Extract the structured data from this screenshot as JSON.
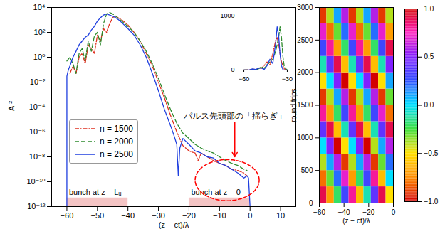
{
  "chart_data": [
    {
      "type": "line",
      "xlabel": "(z − ct)/λ",
      "ylabel": "|A|²",
      "xlim": [
        -65,
        15
      ],
      "xticks": [
        -60,
        -50,
        -40,
        -30,
        -20,
        -10,
        0,
        10
      ],
      "ylim": [
        1e-12,
        10000
      ],
      "yticks": [
        {
          "value": 1e-12,
          "label": "10⁻¹²"
        },
        {
          "value": 1e-10,
          "label": "10⁻¹⁰"
        },
        {
          "value": 1e-08,
          "label": "10⁻⁸"
        },
        {
          "value": 1e-06,
          "label": "10⁻⁶"
        },
        {
          "value": 0.0001,
          "label": "10⁻⁴"
        },
        {
          "value": 0.01,
          "label": "10⁻²"
        },
        {
          "value": 1,
          "label": "10⁰"
        },
        {
          "value": 100,
          "label": "10²"
        },
        {
          "value": 10000,
          "label": "10⁴"
        }
      ],
      "log": "y",
      "legend": "left",
      "series": [
        {
          "name": "n = 1500",
          "color": "#e03020",
          "line_style": "dashdot",
          "x": [
            -59,
            -58,
            -57,
            -56,
            -55,
            -54,
            -53,
            -52,
            -51,
            -50,
            -49,
            -48,
            -47,
            -46,
            -45,
            -44,
            -42,
            -40,
            -38,
            -36,
            -34,
            -32,
            -30,
            -28,
            -26,
            -24,
            -22,
            -20,
            -18,
            -17,
            -16,
            -14,
            -12,
            -10,
            -8,
            -6,
            -4,
            -2,
            -1
          ],
          "values": [
            0.05,
            0.2,
            0.05,
            1,
            2,
            0.3,
            10,
            5,
            2,
            60,
            20,
            200,
            100,
            500,
            1500,
            2000,
            1000,
            400,
            100,
            20,
            2,
            0.2,
            0.01,
            0.0005,
            2e-05,
            1e-06,
            8e-08,
            3e-08,
            2e-08,
            5e-09,
            2e-08,
            1e-08,
            5e-09,
            3e-09,
            2e-09,
            1e-09,
            8e-10,
            5e-10,
            3e-10
          ]
        },
        {
          "name": "n = 2000",
          "color": "#2e8b2e",
          "line_style": "dashed",
          "x": [
            -60,
            -59,
            -58,
            -57,
            -56,
            -55,
            -54,
            -53,
            -52,
            -51,
            -50,
            -49,
            -48,
            -47,
            -46,
            -45,
            -44,
            -42,
            -40,
            -38,
            -36,
            -34,
            -32,
            -30,
            -28,
            -26,
            -24,
            -22,
            -20,
            -18,
            -16,
            -14,
            -12,
            -10,
            -8,
            -6,
            -4,
            -2,
            -1
          ],
          "values": [
            0.5,
            1,
            0.3,
            0.05,
            2,
            5,
            0.5,
            20,
            3,
            50,
            100,
            10,
            500,
            3000,
            4000,
            3000,
            2000,
            800,
            300,
            100,
            20,
            3,
            0.3,
            0.02,
            0.001,
            6e-05,
            5e-06,
            8e-07,
            3e-07,
            1e-07,
            5e-08,
            3e-08,
            2e-08,
            1e-08,
            5e-09,
            3e-09,
            2e-09,
            1e-09,
            8e-10
          ]
        },
        {
          "name": "n = 2500",
          "color": "#1f3fdf",
          "line_style": "solid",
          "x": [
            -60,
            -60,
            -59.5,
            -59,
            -58,
            -57,
            -56,
            -55,
            -54,
            -53,
            -52,
            -51,
            -50,
            -49,
            -48,
            -47,
            -46,
            -45,
            -44,
            -43,
            -42,
            -40,
            -38,
            -36,
            -34,
            -32,
            -30,
            -28,
            -26,
            -25,
            -24,
            -23.5,
            -23,
            -22,
            -20,
            -18,
            -16,
            -14,
            -12,
            -10,
            -8,
            -6,
            -4,
            -2,
            -1,
            -0.5,
            0
          ],
          "values": [
            1e-12,
            0.03,
            0.1,
            0.2,
            1,
            3,
            10,
            20,
            40,
            60,
            150,
            300,
            800,
            1500,
            2500,
            3000,
            2500,
            2000,
            1500,
            1000,
            600,
            200,
            60,
            10,
            1,
            0.05,
            0.002,
            6e-05,
            3e-06,
            6e-07,
            1e-07,
            3e-10,
            5e-08,
            3e-07,
            1e-07,
            3e-08,
            2e-08,
            1e-08,
            8e-09,
            3e-09,
            2e-09,
            1e-09,
            5e-10,
            2e-10,
            3e-10,
            2e-10,
            1e-12
          ]
        }
      ],
      "bunches": [
        {
          "label": "bunch at z = Lᵤ",
          "x0": -60,
          "x1": -40,
          "ytop": 5e-12,
          "color": "#f4c4c4"
        },
        {
          "label": "bunch at z = 0",
          "x0": -20,
          "x1": 0,
          "ytop": 5e-12,
          "color": "#f4c4c4"
        }
      ],
      "annotations": [
        {
          "text": "パルス先頭部の「揺らぎ」",
          "x": -5,
          "y": 2e-05,
          "arrow_to": [
            -5,
            1e-08
          ],
          "color": "red",
          "ellipse": {
            "x": [
              -18,
              3
            ],
            "y": [
              3e-12,
              6e-09
            ]
          }
        }
      ]
    },
    {
      "type": "line",
      "xlim": [
        -62,
        -28
      ],
      "xticks": [
        -60,
        -30
      ],
      "ylim": [
        0,
        1000
      ],
      "yticks": [
        0,
        1000
      ],
      "series": [
        {
          "color": "#e03020",
          "line_style": "dashdot",
          "x": [
            -60,
            -56,
            -54,
            -52,
            -50,
            -48,
            -46,
            -44,
            -42,
            -40,
            -38,
            -37,
            -36,
            -35,
            -34,
            -32,
            -30
          ],
          "values": [
            0,
            5,
            15,
            10,
            40,
            30,
            80,
            150,
            100,
            300,
            550,
            600,
            500,
            300,
            150,
            20,
            0
          ]
        },
        {
          "color": "#2e8b2e",
          "line_style": "dashed",
          "x": [
            -60,
            -56,
            -54,
            -52,
            -50,
            -48,
            -46,
            -44,
            -42,
            -40,
            -38,
            -36,
            -35,
            -34,
            -33,
            -32,
            -30
          ],
          "values": [
            0,
            2,
            10,
            5,
            20,
            60,
            30,
            100,
            150,
            200,
            350,
            600,
            800,
            600,
            250,
            50,
            0
          ]
        },
        {
          "color": "#1f3fdf",
          "line_style": "solid",
          "x": [
            -60,
            -56,
            -54,
            -52,
            -50,
            -48,
            -46,
            -44,
            -42,
            -40,
            -38,
            -37,
            -36,
            -35,
            -34,
            -33,
            -32,
            -30
          ],
          "values": [
            0,
            5,
            20,
            10,
            30,
            40,
            10,
            80,
            200,
            120,
            500,
            800,
            650,
            300,
            80,
            10,
            0,
            0
          ]
        }
      ]
    },
    {
      "type": "heatmap",
      "xlabel": "(z − ct)/λ",
      "ylabel": "round trips",
      "xlim": [
        -60,
        0
      ],
      "xticks": [
        -60,
        -40,
        -20,
        0
      ],
      "ylim": [
        0,
        3000
      ],
      "yticks": [
        0,
        500,
        1000,
        1500,
        2000,
        2500,
        3000
      ],
      "x_edges": [
        -60,
        -54,
        -48,
        -42,
        -36,
        -30,
        -24,
        -18,
        -12,
        -6,
        0
      ],
      "y_edges": [
        0,
        250,
        500,
        750,
        1000,
        1250,
        1500,
        1750,
        2000,
        2250,
        2500,
        2750,
        3000
      ],
      "cells": [
        [
          0.9,
          -0.7,
          -0.2,
          0.3,
          0.8,
          -0.6,
          -0.1,
          0.4,
          0.9,
          -0.5
        ],
        [
          -0.8,
          -0.3,
          0.2,
          0.7,
          -0.7,
          -0.2,
          0.3,
          0.8,
          -0.6,
          0.0
        ],
        [
          -0.4,
          0.1,
          0.6,
          -0.9,
          -0.4,
          0.1,
          0.6,
          -0.9,
          -0.3,
          0.2
        ],
        [
          0.0,
          0.5,
          -1.0,
          -0.5,
          0.0,
          0.5,
          1.0,
          -0.4,
          0.1,
          0.6
        ],
        [
          0.4,
          0.9,
          -0.6,
          -0.1,
          0.4,
          0.9,
          -0.6,
          -0.1,
          0.4,
          0.9
        ],
        [
          0.8,
          -0.7,
          -0.2,
          0.3,
          0.8,
          -0.7,
          -0.2,
          0.3,
          0.7,
          -0.8
        ],
        [
          -0.9,
          -0.4,
          0.1,
          0.6,
          -0.9,
          -0.4,
          0.1,
          0.6,
          -0.9,
          -0.3
        ],
        [
          -0.5,
          0.0,
          0.5,
          1.0,
          -0.5,
          0.0,
          0.5,
          -1.0,
          -0.5,
          0.1
        ],
        [
          -0.1,
          0.4,
          0.9,
          -0.6,
          -0.1,
          0.4,
          0.9,
          -0.6,
          -0.1,
          0.5
        ],
        [
          0.3,
          0.8,
          -0.7,
          -0.2,
          0.3,
          0.8,
          -0.7,
          -0.2,
          0.3,
          0.9
        ],
        [
          0.7,
          -0.8,
          -0.3,
          0.2,
          0.7,
          -0.8,
          -0.3,
          0.2,
          0.7,
          -0.7
        ],
        [
          -0.9,
          -0.4,
          0.1,
          0.6,
          -0.9,
          -0.4,
          0.1,
          0.6,
          -0.9,
          -0.4
        ]
      ],
      "colorbar": {
        "range": [
          -1,
          1
        ],
        "ticks": [
          {
            "value": -1,
            "label": "−1.0"
          },
          {
            "value": -0.5,
            "label": "−0.5"
          },
          {
            "value": 0,
            "label": "0.0"
          },
          {
            "value": 0.5,
            "label": "0.5"
          },
          {
            "value": 1,
            "label": "1.0"
          }
        ],
        "colors": [
          "#d40000",
          "#ff8c00",
          "#ffe000",
          "#40e040",
          "#00e0ff",
          "#3050ff",
          "#8020ff",
          "#ff20c0",
          "#d40000"
        ]
      }
    }
  ]
}
